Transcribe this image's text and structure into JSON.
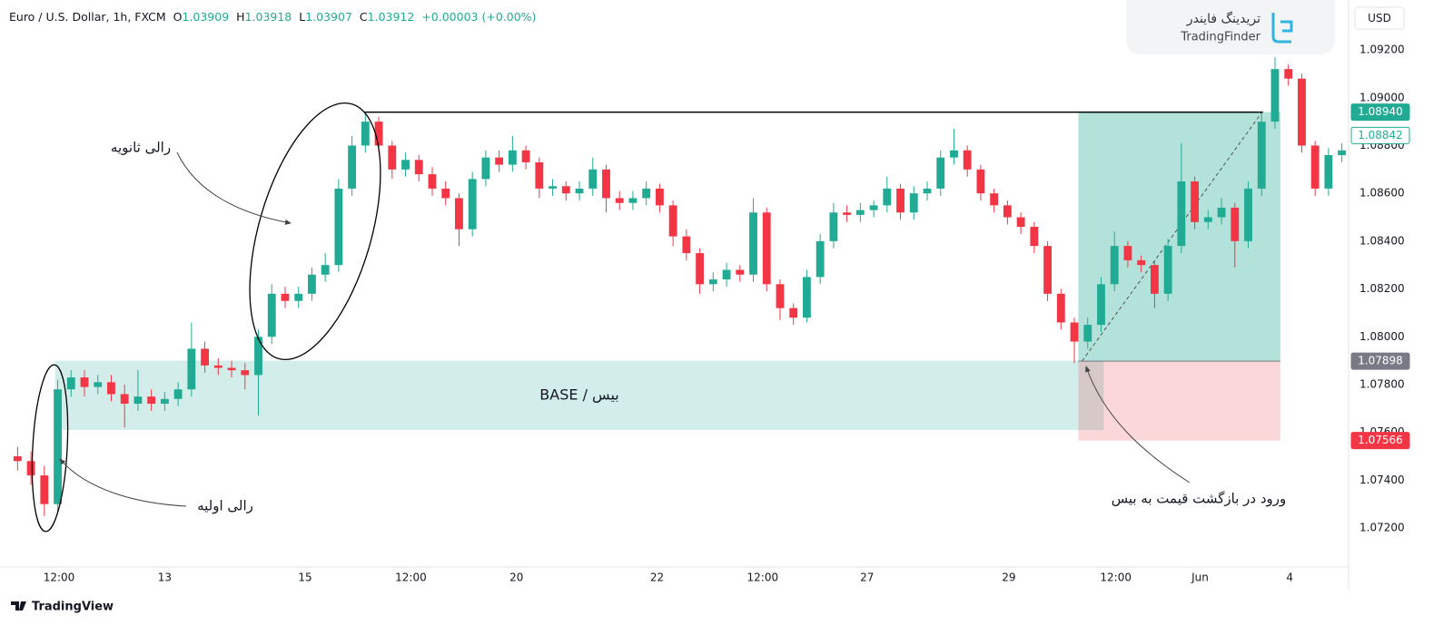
{
  "chart_data": {
    "type": "candlestick",
    "header": {
      "symbol": "Euro / U.S. Dollar, 1h, FXCM",
      "ohlc": [
        {
          "key": "O",
          "value": 1.03909
        },
        {
          "key": "H",
          "value": 1.03918
        },
        {
          "key": "L",
          "value": 1.03907
        },
        {
          "key": "C",
          "value": 1.03912
        }
      ],
      "change": "+0.00003 (+0.00%)"
    },
    "currency": "USD",
    "up_color": "#22ab94",
    "down_color": "#f23645",
    "grid": false,
    "open": [
      1.075,
      1.0748,
      1.0742,
      1.073,
      1.0778,
      1.0783,
      1.0779,
      1.0781,
      1.0776,
      1.0772,
      1.0775,
      1.0772,
      1.0774,
      1.0778,
      1.0795,
      1.0788,
      1.0787,
      1.0786,
      1.0784,
      1.08,
      1.0818,
      1.0815,
      1.0818,
      1.0826,
      1.083,
      1.0862,
      1.088,
      1.089,
      1.088,
      1.087,
      1.0874,
      1.0868,
      1.0862,
      1.0858,
      1.0845,
      1.0866,
      1.0875,
      1.0872,
      1.0878,
      1.0873,
      1.0862,
      1.0863,
      1.086,
      1.0862,
      1.087,
      1.0858,
      1.0856,
      1.0858,
      1.0862,
      1.0855,
      1.0842,
      1.0835,
      1.0822,
      1.0824,
      1.0828,
      1.0826,
      1.0852,
      1.0822,
      1.0812,
      1.0808,
      1.0825,
      1.084,
      1.0852,
      1.0851,
      1.0853,
      1.0855,
      1.0862,
      1.0852,
      1.086,
      1.0862,
      1.0875,
      1.0878,
      1.087,
      1.086,
      1.0855,
      1.085,
      1.0846,
      1.0838,
      1.0818,
      1.0806,
      1.0798,
      1.0805,
      1.0822,
      1.0838,
      1.0832,
      1.083,
      1.0818,
      1.0838,
      1.0865,
      1.0848,
      1.085,
      1.0854,
      1.084,
      1.0862,
      1.089,
      1.0912,
      1.0908,
      1.088,
      1.0862,
      1.0876
    ],
    "high": [
      1.0754,
      1.0752,
      1.0746,
      1.0782,
      1.0786,
      1.0786,
      1.0784,
      1.0784,
      1.078,
      1.0786,
      1.0778,
      1.0777,
      1.0781,
      1.0806,
      1.0798,
      1.0791,
      1.079,
      1.0789,
      1.0803,
      1.0822,
      1.0821,
      1.0821,
      1.0829,
      1.0835,
      1.0866,
      1.0884,
      1.0894,
      1.0892,
      1.0882,
      1.0877,
      1.0876,
      1.0871,
      1.0865,
      1.086,
      1.0869,
      1.0878,
      1.0878,
      1.0884,
      1.088,
      1.0875,
      1.0866,
      1.0865,
      1.0865,
      1.0875,
      1.0872,
      1.0861,
      1.0861,
      1.0865,
      1.0864,
      1.0857,
      1.0845,
      1.0837,
      1.0827,
      1.0831,
      1.083,
      1.0858,
      1.0854,
      1.0824,
      1.0814,
      1.0828,
      1.0843,
      1.0856,
      1.0855,
      1.0856,
      1.0857,
      1.0867,
      1.0864,
      1.0863,
      1.0865,
      1.0878,
      1.0887,
      1.088,
      1.0872,
      1.0862,
      1.0857,
      1.0852,
      1.0848,
      1.084,
      1.082,
      1.0808,
      1.0808,
      1.0825,
      1.0844,
      1.084,
      1.0834,
      1.0832,
      1.0841,
      1.0881,
      1.0867,
      1.0853,
      1.0858,
      1.0856,
      1.0865,
      1.0893,
      1.0917,
      1.0914,
      1.091,
      1.0882,
      1.0879,
      1.0881
    ],
    "low": [
      1.0744,
      1.0738,
      1.0725,
      1.0727,
      1.0775,
      1.0775,
      1.0776,
      1.0773,
      1.0762,
      1.0769,
      1.0769,
      1.0769,
      1.0771,
      1.0775,
      1.0785,
      1.0784,
      1.0783,
      1.0778,
      1.0767,
      1.0797,
      1.0812,
      1.0812,
      1.0815,
      1.0823,
      1.0827,
      1.0859,
      1.0877,
      1.0877,
      1.0866,
      1.0867,
      1.0865,
      1.0859,
      1.0855,
      1.0838,
      1.0842,
      1.0863,
      1.0869,
      1.0869,
      1.087,
      1.0858,
      1.0859,
      1.0857,
      1.0857,
      1.0859,
      1.0852,
      1.0853,
      1.0853,
      1.0855,
      1.0852,
      1.0838,
      1.0832,
      1.0818,
      1.0819,
      1.0821,
      1.0823,
      1.0823,
      1.0819,
      1.0807,
      1.0805,
      1.0806,
      1.0822,
      1.0837,
      1.0848,
      1.0848,
      1.085,
      1.0852,
      1.0849,
      1.0849,
      1.0857,
      1.0859,
      1.0872,
      1.0867,
      1.0857,
      1.0852,
      1.0847,
      1.0843,
      1.0835,
      1.0815,
      1.0803,
      1.0789,
      1.0795,
      1.0802,
      1.0819,
      1.0829,
      1.0827,
      1.0812,
      1.0815,
      1.0835,
      1.0845,
      1.0845,
      1.0847,
      1.0829,
      1.0837,
      1.0859,
      1.0887,
      1.0905,
      1.0877,
      1.0859,
      1.0859,
      1.0873
    ],
    "close": [
      1.0748,
      1.0742,
      1.073,
      1.0778,
      1.0783,
      1.0779,
      1.0781,
      1.0776,
      1.0772,
      1.0775,
      1.0772,
      1.0774,
      1.0778,
      1.0795,
      1.0788,
      1.0787,
      1.0786,
      1.0784,
      1.08,
      1.0818,
      1.0815,
      1.0818,
      1.0826,
      1.083,
      1.0862,
      1.088,
      1.089,
      1.088,
      1.087,
      1.0874,
      1.0868,
      1.0862,
      1.0858,
      1.0845,
      1.0866,
      1.0875,
      1.0872,
      1.0878,
      1.0873,
      1.0862,
      1.0863,
      1.086,
      1.0862,
      1.087,
      1.0858,
      1.0856,
      1.0858,
      1.0862,
      1.0855,
      1.0842,
      1.0835,
      1.0822,
      1.0824,
      1.0828,
      1.0826,
      1.0852,
      1.0822,
      1.0812,
      1.0808,
      1.0825,
      1.084,
      1.0852,
      1.0851,
      1.0853,
      1.0855,
      1.0862,
      1.0852,
      1.086,
      1.0862,
      1.0875,
      1.0878,
      1.087,
      1.086,
      1.0855,
      1.085,
      1.0846,
      1.0838,
      1.0818,
      1.0806,
      1.0798,
      1.0805,
      1.0822,
      1.0838,
      1.0832,
      1.083,
      1.0818,
      1.0838,
      1.0865,
      1.0848,
      1.085,
      1.0854,
      1.084,
      1.0862,
      1.089,
      1.0912,
      1.0908,
      1.088,
      1.0862,
      1.0876,
      1.0878
    ],
    "xlim": [
      0,
      100
    ],
    "xticks": [
      {
        "value": 3.6,
        "label": "12:00"
      },
      {
        "value": 11.5,
        "label": "13"
      },
      {
        "value": 22.0,
        "label": "15"
      },
      {
        "value": 29.9,
        "label": "12:00"
      },
      {
        "value": 37.8,
        "label": "20"
      },
      {
        "value": 48.3,
        "label": "22"
      },
      {
        "value": 56.2,
        "label": "12:00"
      },
      {
        "value": 64.0,
        "label": "27"
      },
      {
        "value": 74.6,
        "label": "29"
      },
      {
        "value": 82.6,
        "label": "12:00"
      },
      {
        "value": 88.9,
        "label": "Jun"
      },
      {
        "value": 95.6,
        "label": "4"
      }
    ],
    "ylim": [
      1.07037,
      1.09409
    ],
    "yticks": [
      {
        "value": 1.072,
        "label": "1.07200"
      },
      {
        "value": 1.074,
        "label": "1.07400"
      },
      {
        "value": 1.076,
        "label": "1.07600"
      },
      {
        "value": 1.078,
        "label": "1.07800"
      },
      {
        "value": 1.08,
        "label": "1.08000"
      },
      {
        "value": 1.082,
        "label": "1.08200"
      },
      {
        "value": 1.084,
        "label": "1.08400"
      },
      {
        "value": 1.086,
        "label": "1.08600"
      },
      {
        "value": 1.088,
        "label": "1.08800"
      },
      {
        "value": 1.09,
        "label": "1.09000"
      },
      {
        "value": 1.092,
        "label": "1.09200"
      }
    ],
    "price_labels": [
      {
        "value": 1.0894,
        "label": "1.08940",
        "color": "#22ab94"
      },
      {
        "value": 1.08842,
        "label": "1.08842",
        "color": "#22ab94",
        "outline": true
      },
      {
        "value": 1.07898,
        "label": "1.07898",
        "color": "#787b86"
      },
      {
        "value": 1.07566,
        "label": "1.07566",
        "color": "#f23645"
      }
    ],
    "base_zone": {
      "label": "BASE / بیس",
      "top": 1.079,
      "bottom": 1.0761,
      "from": 3.3,
      "to": 81.7,
      "color": "#22ab94"
    },
    "position": {
      "target": 1.0894,
      "entry": 1.07898,
      "stop": 1.07566,
      "from": 79.8,
      "to": 94.9
    },
    "level_line": {
      "value": 1.0894,
      "from": 26.4,
      "to": 93.6
    },
    "annotations": [
      "رالی ثانویه",
      "رالی اولیه",
      "ورود در بازگشت قیمت به بیس"
    ]
  },
  "branding": {
    "logo_fa": "تریدینگ فایندر",
    "logo_en": "TradingFinder",
    "footer": "TradingView"
  }
}
